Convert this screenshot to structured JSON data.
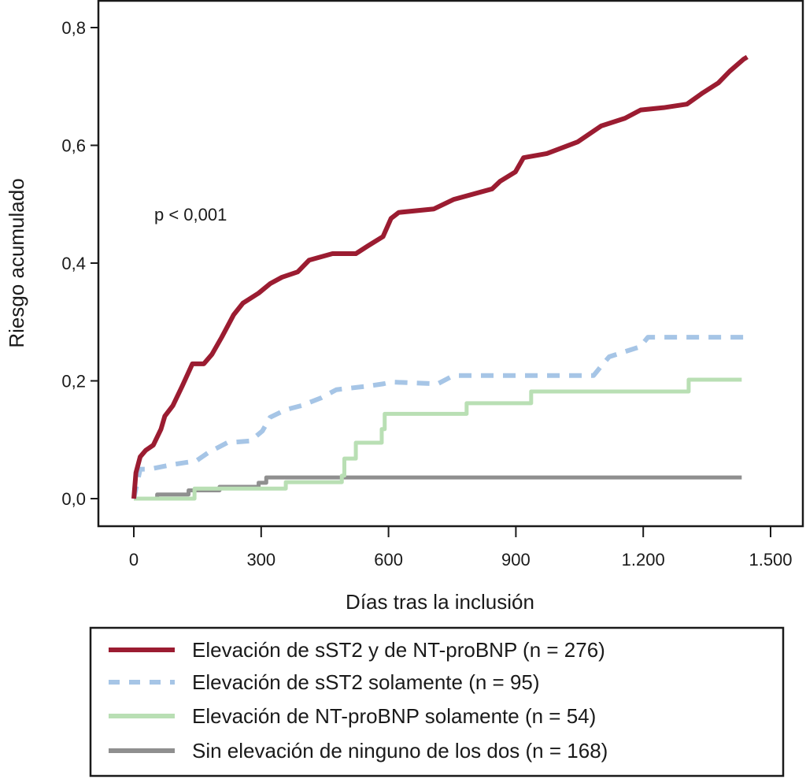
{
  "chart_data": {
    "type": "line",
    "title": "",
    "xlabel": "Días tras la inclusión",
    "ylabel": "Riesgo acumulado",
    "xlim": [
      -20,
      1520
    ],
    "ylim": [
      -0.047,
      0.847
    ],
    "xticks": [
      0,
      300,
      600,
      900,
      1200,
      1500
    ],
    "xtick_labels": [
      "0",
      "300",
      "600",
      "900",
      "1.200",
      "1.500"
    ],
    "yticks": [
      0,
      0.2,
      0.4,
      0.6,
      0.8
    ],
    "ytick_labels": [
      "0,0",
      "0,2",
      "0,4",
      "0,6",
      "0,8"
    ],
    "grid": false,
    "legend_position": "bottom",
    "annotations": [
      {
        "text": "p < 0,001",
        "x": 50,
        "y": 0.48
      }
    ],
    "series": [
      {
        "name": "Elevación de sST2 y de NT-proBNP (n = 276)",
        "color": "#9b1c31",
        "style": "solid",
        "x": [
          0,
          5,
          15,
          28,
          46,
          64,
          73,
          92,
          114,
          138,
          165,
          184,
          207,
          235,
          257,
          294,
          321,
          349,
          386,
          413,
          468,
          523,
          551,
          587,
          606,
          624,
          707,
          753,
          844,
          863,
          899,
          918,
          973,
          1046,
          1101,
          1157,
          1194,
          1248,
          1303,
          1340,
          1377,
          1404,
          1436,
          1445
        ],
        "y": [
          0,
          0.044,
          0.071,
          0.082,
          0.091,
          0.118,
          0.14,
          0.158,
          0.191,
          0.229,
          0.229,
          0.245,
          0.274,
          0.312,
          0.332,
          0.349,
          0.365,
          0.376,
          0.385,
          0.405,
          0.416,
          0.416,
          0.429,
          0.445,
          0.476,
          0.486,
          0.492,
          0.508,
          0.526,
          0.539,
          0.555,
          0.579,
          0.586,
          0.606,
          0.633,
          0.646,
          0.66,
          0.664,
          0.67,
          0.689,
          0.706,
          0.726,
          0.746,
          0.75
        ]
      },
      {
        "name": "Elevación de sST2 solamente (n = 95)",
        "color": "#a6c5e6",
        "style": "dashed",
        "x": [
          0,
          15,
          37,
          92,
          147,
          175,
          220,
          275,
          303,
          321,
          358,
          395,
          441,
          477,
          551,
          588,
          606,
          716,
          753,
          1083,
          1101,
          1120,
          1193,
          1211,
          1441,
          1445
        ],
        "y": [
          0,
          0.05,
          0.05,
          0.058,
          0.064,
          0.078,
          0.095,
          0.098,
          0.115,
          0.138,
          0.151,
          0.158,
          0.171,
          0.185,
          0.191,
          0.195,
          0.198,
          0.195,
          0.209,
          0.209,
          0.225,
          0.241,
          0.258,
          0.274,
          0.274,
          0.278
        ]
      },
      {
        "name": "Elevación de NT-proBNP solamente (n = 54)",
        "color": "#b9dfb4",
        "style": "step",
        "x": [
          0,
          143,
          358,
          490,
          496,
          523,
          584,
          591,
          784,
          936,
          1307,
          1432
        ],
        "y": [
          0,
          0.017,
          0.028,
          0.039,
          0.068,
          0.095,
          0.118,
          0.144,
          0.162,
          0.182,
          0.202,
          0.202
        ]
      },
      {
        "name": "Sin elevación de ninguno de los dos (n = 168)",
        "color": "#8f8f8f",
        "style": "step",
        "x": [
          0,
          55,
          129,
          202,
          294,
          312,
          1432
        ],
        "y": [
          0,
          0.007,
          0.014,
          0.02,
          0.027,
          0.036,
          0.036
        ]
      }
    ]
  }
}
